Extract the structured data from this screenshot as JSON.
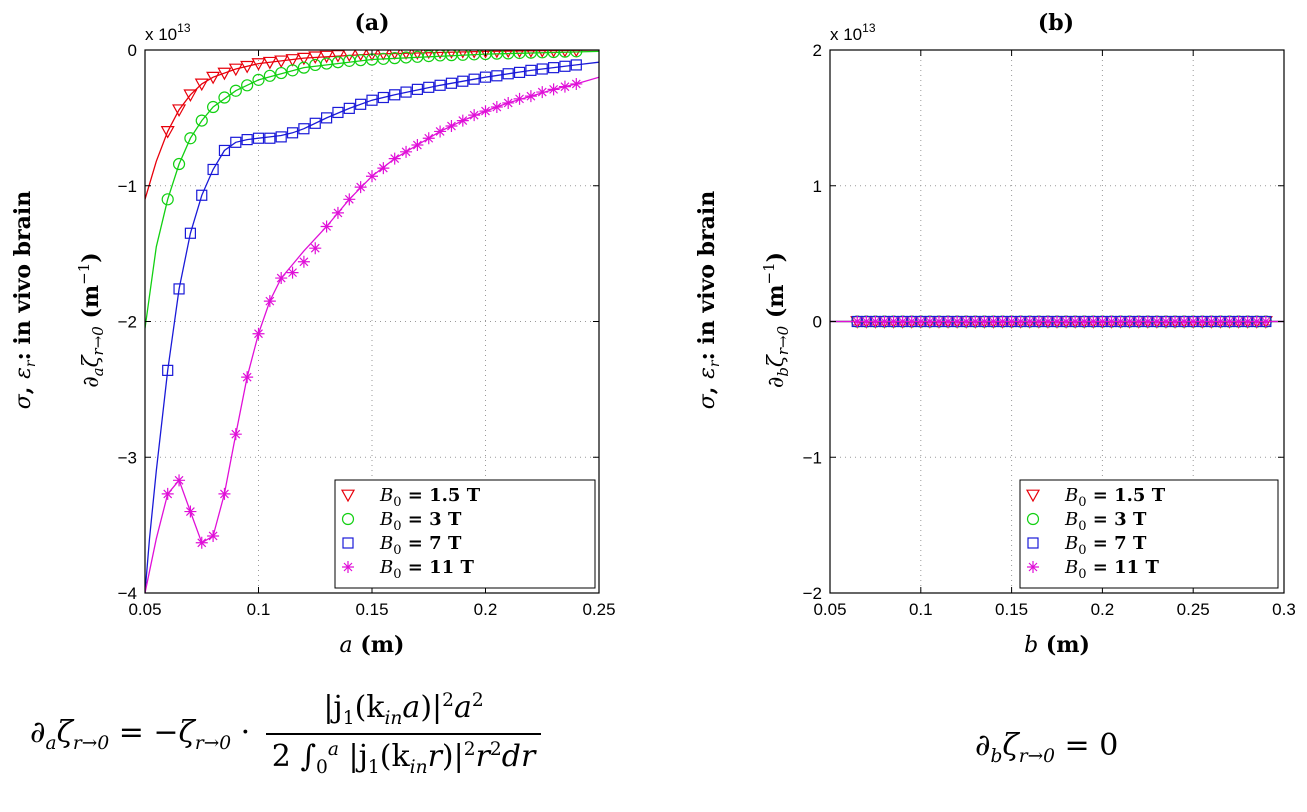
{
  "chart_data": [
    {
      "type": "line",
      "title": "(a)",
      "side_label": "σ, ε_r: in vivo brain",
      "side_label_parts": {
        "sigma": "σ",
        "sep": ", ",
        "eps": "ε",
        "eps_sub": "r",
        "rest": ": in vivo brain"
      },
      "ylabel_parts": {
        "partial": "∂",
        "sub1": "a",
        "zeta": "ζ",
        "sub2": "r→0",
        "unit_open": " (",
        "unit": "m",
        "exp": "−1",
        "unit_close": ")"
      },
      "xlabel_parts": {
        "var": "a",
        "unit": " (m)"
      },
      "multiplier": "x 10",
      "multiplier_exp": "13",
      "xlim": [
        0.05,
        0.25
      ],
      "ylim": [
        -4,
        0
      ],
      "xticks": [
        0.05,
        0.1,
        0.15,
        0.2,
        0.25
      ],
      "xtick_labels": [
        "0.05",
        "0.1",
        "0.15",
        "0.2",
        "0.25"
      ],
      "yticks": [
        -4,
        -3,
        -2,
        -1,
        0
      ],
      "ytick_labels": [
        "−4",
        "−3",
        "−2",
        "−1",
        "0"
      ],
      "grid": true,
      "legend_position": "bottom-right",
      "series": [
        {
          "name": "B0 = 1.5 T",
          "b0_value": "1.5",
          "marker": "triangle-down",
          "color": "#e8000b",
          "line_x": [
            0.05,
            0.055,
            0.06,
            0.065,
            0.07,
            0.075,
            0.08,
            0.09,
            0.1,
            0.12,
            0.15,
            0.2,
            0.25
          ],
          "line_y": [
            -1.1,
            -0.82,
            -0.6,
            -0.44,
            -0.33,
            -0.25,
            -0.2,
            -0.14,
            -0.1,
            -0.06,
            -0.03,
            -0.01,
            0
          ],
          "marker_x": [
            0.06,
            0.065,
            0.07,
            0.075,
            0.08,
            0.085,
            0.09,
            0.095,
            0.1,
            0.105,
            0.11,
            0.115,
            0.12,
            0.125,
            0.13,
            0.135,
            0.14,
            0.145,
            0.15,
            0.155,
            0.16,
            0.165,
            0.17,
            0.175,
            0.18,
            0.185,
            0.19,
            0.195,
            0.2,
            0.205,
            0.21,
            0.215,
            0.22,
            0.225,
            0.23,
            0.235,
            0.24
          ],
          "marker_y": [
            -0.6,
            -0.44,
            -0.33,
            -0.25,
            -0.2,
            -0.17,
            -0.14,
            -0.12,
            -0.1,
            -0.09,
            -0.08,
            -0.07,
            -0.06,
            -0.05,
            -0.045,
            -0.04,
            -0.035,
            -0.03,
            -0.03,
            -0.025,
            -0.02,
            -0.02,
            -0.02,
            -0.015,
            -0.015,
            -0.012,
            -0.01,
            -0.01,
            -0.01,
            -0.008,
            -0.007,
            -0.006,
            -0.005,
            -0.004,
            -0.003,
            -0.002,
            -0.001
          ]
        },
        {
          "name": "B0 = 3 T",
          "b0_value": "3",
          "marker": "circle",
          "color": "#12d012",
          "line_x": [
            0.05,
            0.055,
            0.06,
            0.065,
            0.07,
            0.075,
            0.08,
            0.09,
            0.1,
            0.12,
            0.15,
            0.2,
            0.25
          ],
          "line_y": [
            -2.05,
            -1.45,
            -1.1,
            -0.84,
            -0.65,
            -0.52,
            -0.42,
            -0.3,
            -0.22,
            -0.13,
            -0.07,
            -0.03,
            -0.01
          ],
          "marker_x": [
            0.06,
            0.065,
            0.07,
            0.075,
            0.08,
            0.085,
            0.09,
            0.095,
            0.1,
            0.105,
            0.11,
            0.115,
            0.12,
            0.125,
            0.13,
            0.135,
            0.14,
            0.145,
            0.15,
            0.155,
            0.16,
            0.165,
            0.17,
            0.175,
            0.18,
            0.185,
            0.19,
            0.195,
            0.2,
            0.205,
            0.21,
            0.215,
            0.22,
            0.225,
            0.23,
            0.235,
            0.24
          ],
          "marker_y": [
            -1.1,
            -0.84,
            -0.65,
            -0.52,
            -0.42,
            -0.35,
            -0.3,
            -0.26,
            -0.22,
            -0.19,
            -0.17,
            -0.15,
            -0.13,
            -0.11,
            -0.1,
            -0.09,
            -0.08,
            -0.075,
            -0.07,
            -0.065,
            -0.06,
            -0.055,
            -0.05,
            -0.045,
            -0.04,
            -0.038,
            -0.035,
            -0.032,
            -0.03,
            -0.027,
            -0.025,
            -0.022,
            -0.02,
            -0.017,
            -0.015,
            -0.012,
            -0.01
          ]
        },
        {
          "name": "B0 = 7 T",
          "b0_value": "7",
          "marker": "square",
          "color": "#1a1ad8",
          "line_x": [
            0.05,
            0.052,
            0.055,
            0.06,
            0.065,
            0.07,
            0.075,
            0.08,
            0.085,
            0.09,
            0.095,
            0.1,
            0.105,
            0.11,
            0.115,
            0.12,
            0.13,
            0.14,
            0.15,
            0.16,
            0.18,
            0.2,
            0.22,
            0.24,
            0.25
          ],
          "line_y": [
            -4.0,
            -3.6,
            -3.1,
            -2.36,
            -1.76,
            -1.35,
            -1.07,
            -0.88,
            -0.74,
            -0.68,
            -0.66,
            -0.65,
            -0.64,
            -0.63,
            -0.61,
            -0.58,
            -0.5,
            -0.43,
            -0.37,
            -0.33,
            -0.26,
            -0.2,
            -0.15,
            -0.11,
            -0.09
          ],
          "marker_x": [
            0.06,
            0.065,
            0.07,
            0.075,
            0.08,
            0.085,
            0.09,
            0.095,
            0.1,
            0.105,
            0.11,
            0.115,
            0.12,
            0.125,
            0.13,
            0.135,
            0.14,
            0.145,
            0.15,
            0.155,
            0.16,
            0.165,
            0.17,
            0.175,
            0.18,
            0.185,
            0.19,
            0.195,
            0.2,
            0.205,
            0.21,
            0.215,
            0.22,
            0.225,
            0.23,
            0.235,
            0.24
          ],
          "marker_y": [
            -2.36,
            -1.76,
            -1.35,
            -1.07,
            -0.88,
            -0.74,
            -0.68,
            -0.66,
            -0.65,
            -0.65,
            -0.64,
            -0.61,
            -0.58,
            -0.54,
            -0.5,
            -0.46,
            -0.43,
            -0.4,
            -0.37,
            -0.35,
            -0.33,
            -0.31,
            -0.29,
            -0.275,
            -0.26,
            -0.245,
            -0.23,
            -0.215,
            -0.2,
            -0.19,
            -0.175,
            -0.165,
            -0.15,
            -0.14,
            -0.13,
            -0.12,
            -0.11
          ]
        },
        {
          "name": "B0 = 11 T",
          "b0_value": "11",
          "marker": "asterisk",
          "color": "#e010d8",
          "line_x": [
            0.05,
            0.055,
            0.06,
            0.065,
            0.07,
            0.075,
            0.08,
            0.085,
            0.09,
            0.095,
            0.1,
            0.105,
            0.11,
            0.115,
            0.12,
            0.13,
            0.14,
            0.15,
            0.16,
            0.17,
            0.18,
            0.19,
            0.2,
            0.21,
            0.22,
            0.23,
            0.24,
            0.25
          ],
          "line_y": [
            -4.0,
            -3.6,
            -3.27,
            -3.17,
            -3.4,
            -3.63,
            -3.58,
            -3.27,
            -2.83,
            -2.41,
            -2.09,
            -1.85,
            -1.68,
            -1.58,
            -1.48,
            -1.3,
            -1.1,
            -0.93,
            -0.8,
            -0.7,
            -0.6,
            -0.52,
            -0.45,
            -0.39,
            -0.34,
            -0.29,
            -0.25,
            -0.2
          ],
          "marker_x": [
            0.06,
            0.065,
            0.07,
            0.075,
            0.08,
            0.085,
            0.09,
            0.095,
            0.1,
            0.105,
            0.11,
            0.115,
            0.12,
            0.125,
            0.13,
            0.135,
            0.14,
            0.145,
            0.15,
            0.155,
            0.16,
            0.165,
            0.17,
            0.175,
            0.18,
            0.185,
            0.19,
            0.195,
            0.2,
            0.205,
            0.21,
            0.215,
            0.22,
            0.225,
            0.23,
            0.235,
            0.24
          ],
          "marker_y": [
            -3.27,
            -3.17,
            -3.4,
            -3.63,
            -3.58,
            -3.27,
            -2.83,
            -2.41,
            -2.09,
            -1.85,
            -1.68,
            -1.64,
            -1.56,
            -1.46,
            -1.3,
            -1.2,
            -1.1,
            -1.01,
            -0.93,
            -0.87,
            -0.8,
            -0.75,
            -0.7,
            -0.65,
            -0.6,
            -0.56,
            -0.52,
            -0.48,
            -0.45,
            -0.42,
            -0.39,
            -0.36,
            -0.34,
            -0.31,
            -0.29,
            -0.27,
            -0.25
          ]
        }
      ],
      "formula": {
        "lhs_partial": "∂",
        "lhs_sub1": "a",
        "lhs_zeta": "ζ",
        "lhs_sub2": "r→0",
        "eq": " = −",
        "rhs_zeta": "ζ",
        "rhs_sub": "r→0",
        "dot": " · ",
        "num_left": "|j",
        "num_j_sub": "1",
        "num_mid": "(k",
        "num_k_sub": "in",
        "num_a": "a",
        "num_close": ")|",
        "num_sup": "2",
        "num_a2": "a",
        "num_a2_sup": "2",
        "den_two": "2 ",
        "den_int": "∫",
        "den_int_sub": "0",
        "den_int_sup": "a",
        "den_abs": " |j",
        "den_j_sub": "1",
        "den_mid": "(k",
        "den_k_sub": "in",
        "den_r": "r",
        "den_close": ")|",
        "den_sup": "2",
        "den_r2": "r",
        "den_r2_sup": "2",
        "den_dr": "dr"
      }
    },
    {
      "type": "line",
      "title": "(b)",
      "side_label_parts": {
        "sigma": "σ",
        "sep": ", ",
        "eps": "ε",
        "eps_sub": "r",
        "rest": ": in vivo brain"
      },
      "ylabel_parts": {
        "partial": "∂",
        "sub1": "b",
        "zeta": "ζ",
        "sub2": "r→0",
        "unit_open": " (",
        "unit": "m",
        "exp": "−1",
        "unit_close": ")"
      },
      "xlabel_parts": {
        "var": "b",
        "unit": " (m)"
      },
      "multiplier": "x 10",
      "multiplier_exp": "13",
      "xlim": [
        0.05,
        0.3
      ],
      "ylim": [
        -2,
        2
      ],
      "xticks": [
        0.05,
        0.1,
        0.15,
        0.2,
        0.25,
        0.3
      ],
      "xtick_labels": [
        "0.05",
        "0.1",
        "0.15",
        "0.2",
        "0.25",
        "0.3"
      ],
      "yticks": [
        -2,
        -1,
        0,
        1,
        2
      ],
      "ytick_labels": [
        "−2",
        "−1",
        "0",
        "1",
        "2"
      ],
      "grid": true,
      "legend_position": "bottom-right",
      "series": [
        {
          "name": "B0 = 1.5 T",
          "b0_value": "1.5",
          "marker": "triangle-down",
          "color": "#e8000b",
          "line_x": [
            0.05,
            0.3
          ],
          "line_y": [
            0,
            0
          ],
          "marker_x_range": [
            0.065,
            0.29
          ],
          "marker_count": 46,
          "marker_y_const": 0
        },
        {
          "name": "B0 = 3 T",
          "b0_value": "3",
          "marker": "circle",
          "color": "#12d012",
          "line_x": [
            0.05,
            0.3
          ],
          "line_y": [
            0,
            0
          ],
          "marker_x_range": [
            0.065,
            0.29
          ],
          "marker_count": 46,
          "marker_y_const": 0
        },
        {
          "name": "B0 = 7 T",
          "b0_value": "7",
          "marker": "square",
          "color": "#1a1ad8",
          "line_x": [
            0.05,
            0.3
          ],
          "line_y": [
            0,
            0
          ],
          "marker_x_range": [
            0.065,
            0.29
          ],
          "marker_count": 46,
          "marker_y_const": 0
        },
        {
          "name": "B0 = 11 T",
          "b0_value": "11",
          "marker": "asterisk",
          "color": "#e010d8",
          "line_x": [
            0.05,
            0.3
          ],
          "line_y": [
            0,
            0
          ],
          "marker_x_range": [
            0.065,
            0.29
          ],
          "marker_count": 46,
          "marker_y_const": 0
        }
      ],
      "formula": {
        "lhs_partial": "∂",
        "lhs_sub1": "b",
        "lhs_zeta": "ζ",
        "lhs_sub2": "r→0",
        "eq": " = ",
        "rhs": "0"
      }
    }
  ],
  "legend_b0_symbol": "B",
  "legend_b0_sub": "0",
  "legend_eq": " = ",
  "legend_unit": " T"
}
